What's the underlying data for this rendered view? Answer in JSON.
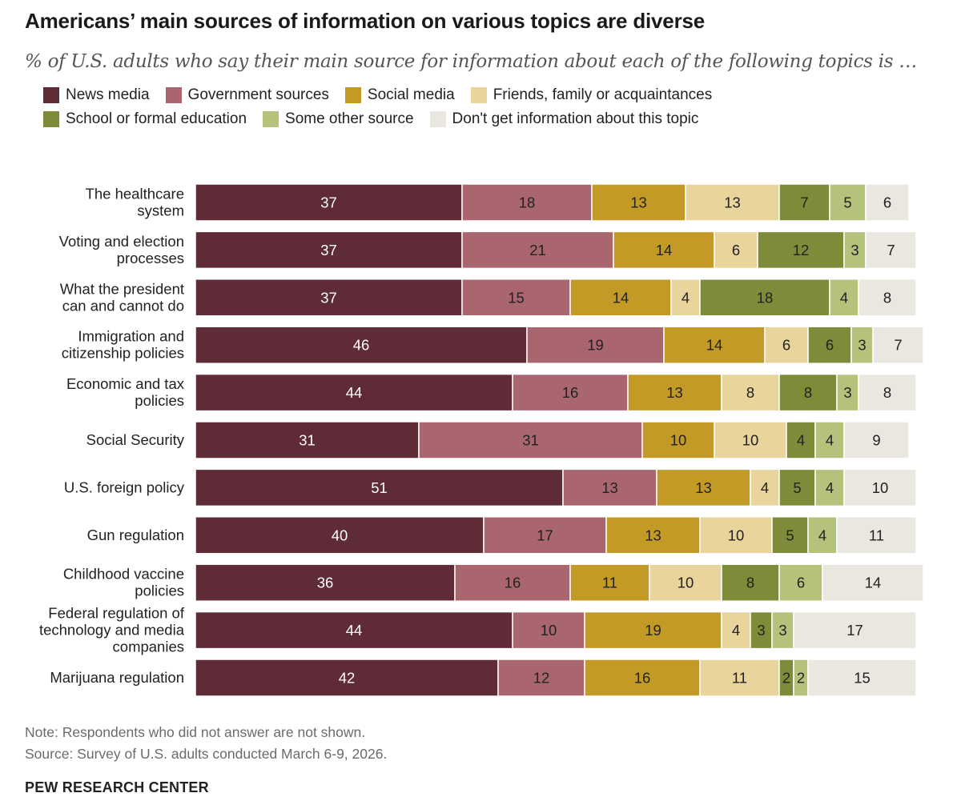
{
  "header": {
    "title": "Americans’ main sources of information on various topics are diverse",
    "subtitle": "% of U.S. adults who say their main source for information about each of the following topics is …"
  },
  "footer": {
    "note": "Note: Respondents who did not answer are not shown.",
    "source": "Source: Survey of U.S. adults conducted March 6-9, 2026.",
    "brand": "PEW RESEARCH CENTER"
  },
  "chart_data": {
    "type": "bar",
    "orientation": "horizontal",
    "stacked": true,
    "title": "Americans’ main sources of information on various topics are diverse",
    "subtitle": "% of U.S. adults who say their main source for information about each of the following topics is …",
    "legend_placement": "top",
    "grid": false,
    "xlim": [
      0,
      100
    ],
    "categories": [
      [
        "The healthcare",
        "system"
      ],
      [
        "Voting and election",
        "processes"
      ],
      [
        "What the president",
        "can and cannot do"
      ],
      [
        "Immigration and",
        "citizenship policies"
      ],
      [
        "Economic and tax",
        "policies"
      ],
      [
        "Social Security"
      ],
      [
        "U.S. foreign policy"
      ],
      [
        "Gun regulation"
      ],
      [
        "Childhood vaccine",
        "policies"
      ],
      [
        "Federal regulation of",
        "technology and media",
        "companies"
      ],
      [
        "Marijuana regulation"
      ]
    ],
    "series": [
      {
        "name": "News media",
        "color": "#5e2b36",
        "text_color": "#ffffff",
        "values": [
          37,
          37,
          37,
          46,
          44,
          31,
          51,
          40,
          36,
          44,
          42
        ]
      },
      {
        "name": "Government sources",
        "color": "#a9666f",
        "text_color": "#222222",
        "values": [
          18,
          21,
          15,
          19,
          16,
          31,
          13,
          17,
          16,
          10,
          12
        ]
      },
      {
        "name": "Social media",
        "color": "#c49a27",
        "text_color": "#222222",
        "values": [
          13,
          14,
          14,
          14,
          13,
          10,
          13,
          13,
          11,
          19,
          16
        ]
      },
      {
        "name": "Friends, family or acquaintances",
        "color": "#e9d49c",
        "text_color": "#222222",
        "values": [
          13,
          6,
          4,
          6,
          8,
          10,
          4,
          10,
          10,
          4,
          11
        ]
      },
      {
        "name": "School or formal education",
        "color": "#7e8c3a",
        "text_color": "#222222",
        "values": [
          7,
          12,
          18,
          6,
          8,
          4,
          5,
          5,
          8,
          3,
          2
        ]
      },
      {
        "name": "Some other source",
        "color": "#b5c27c",
        "text_color": "#222222",
        "values": [
          5,
          3,
          4,
          3,
          3,
          4,
          4,
          4,
          6,
          3,
          2
        ]
      },
      {
        "name": "Don't get information about this topic",
        "color": "#e9e7df",
        "text_color": "#222222",
        "values": [
          6,
          7,
          8,
          7,
          8,
          9,
          10,
          11,
          14,
          17,
          15
        ]
      }
    ]
  }
}
